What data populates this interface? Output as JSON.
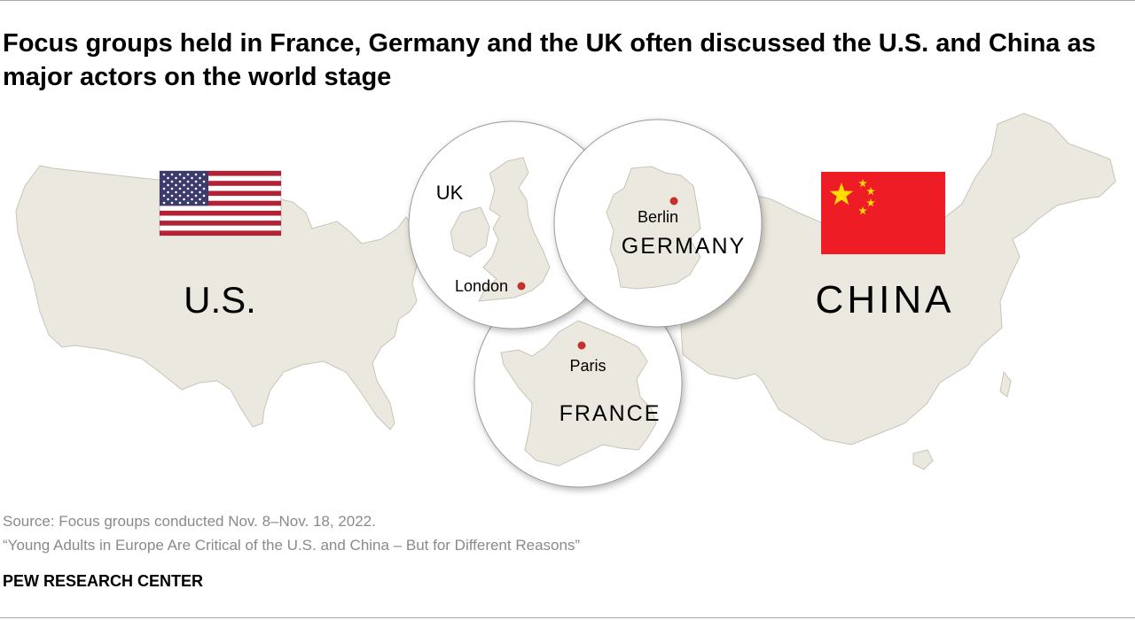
{
  "title": "Focus groups held in France, Germany and the UK often discussed the U.S. and China as major actors on the world stage",
  "countries": {
    "us": {
      "label": "U.S.",
      "flag_icon": "us-flag-icon"
    },
    "china": {
      "label": "CHINA",
      "flag_icon": "china-flag-icon"
    },
    "uk": {
      "label": "UK",
      "city": "London"
    },
    "germany": {
      "label": "GERMANY",
      "city": "Berlin"
    },
    "france": {
      "label": "FRANCE",
      "city": "Paris"
    }
  },
  "colors": {
    "land": "#ebe8df",
    "land_stroke": "#c8c4b8",
    "city_dot": "#c4302b",
    "china_red": "#ee1c25",
    "china_star": "#ffde00",
    "us_red": "#b22234",
    "us_blue": "#3c3b6e"
  },
  "footer": {
    "source": "Source: Focus groups conducted Nov. 8–Nov. 18, 2022.",
    "report": "“Young Adults in Europe Are Critical of the U.S. and China – But for Different Reasons”",
    "brand": "PEW RESEARCH CENTER"
  }
}
